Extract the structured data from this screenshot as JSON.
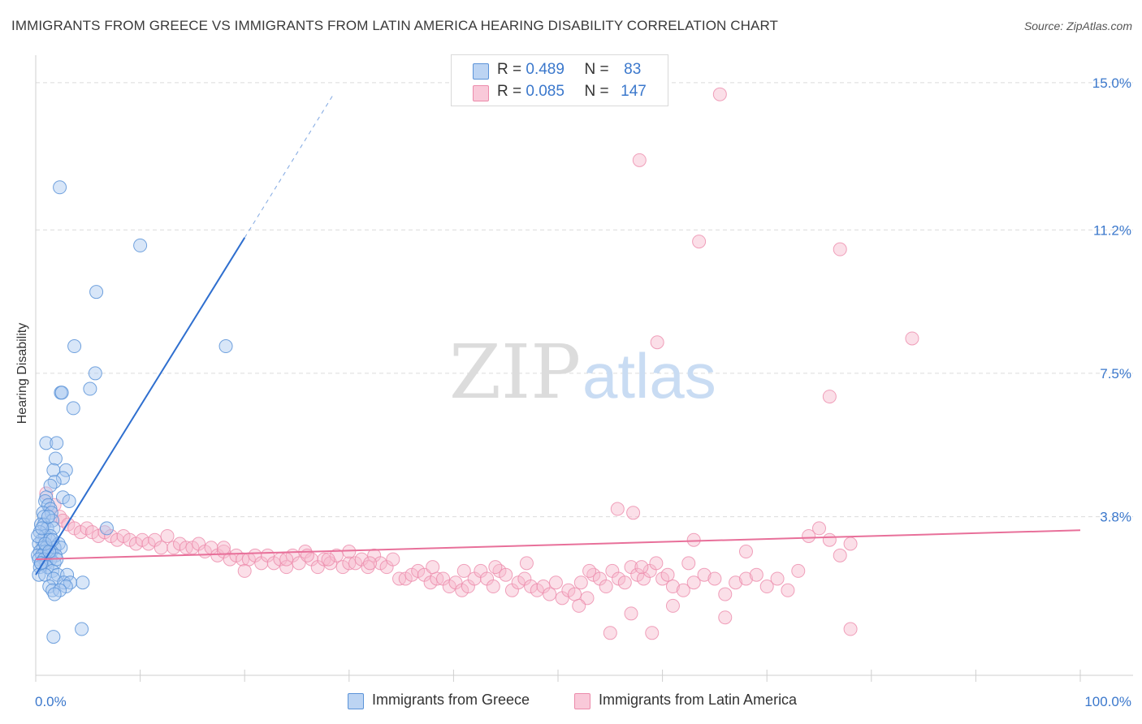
{
  "title": "IMMIGRANTS FROM GREECE VS IMMIGRANTS FROM LATIN AMERICA HEARING DISABILITY CORRELATION CHART",
  "source": "Source: ZipAtlas.com",
  "watermark": {
    "zip": "ZIP",
    "atlas": "atlas"
  },
  "legend": {
    "r_label": "R =",
    "n_label": "N =",
    "series": [
      {
        "name": "Immigrants from Greece",
        "r": "0.489",
        "n": "83"
      },
      {
        "name": "Immigrants from Latin America",
        "r": "0.085",
        "n": "147"
      }
    ]
  },
  "colors": {
    "blue_fill": "#a9c8f0",
    "blue_stroke": "#5b93d8",
    "blue_line": "#2f6fcf",
    "pink_fill": "#f6b8cc",
    "pink_stroke": "#ec8bab",
    "pink_line": "#e8709a",
    "grid": "#dcdcdc",
    "tick_text": "#3b78cc"
  },
  "chart_data": {
    "type": "scatter",
    "title": "IMMIGRANTS FROM GREECE VS IMMIGRANTS FROM LATIN AMERICA HEARING DISABILITY CORRELATION CHART",
    "xlabel": "",
    "ylabel": "Hearing Disability",
    "xlim": [
      0,
      100
    ],
    "ylim": [
      0,
      15.5
    ],
    "x_tick_labels": [
      "0.0%",
      "100.0%"
    ],
    "y_ticks": [
      3.8,
      7.5,
      11.2,
      15.0
    ],
    "y_tick_labels": [
      "3.8%",
      "7.5%",
      "11.2%",
      "15.0%"
    ],
    "series": [
      {
        "name": "Immigrants from Greece",
        "trend": {
          "x0": 0.0,
          "y0": 2.3,
          "x1": 20.0,
          "y1": 11.0,
          "dashed_to_x": 28.5
        },
        "points": [
          [
            2.3,
            12.3
          ],
          [
            10.0,
            10.8
          ],
          [
            5.8,
            9.6
          ],
          [
            3.7,
            8.2
          ],
          [
            18.2,
            8.2
          ],
          [
            5.7,
            7.5
          ],
          [
            5.2,
            7.1
          ],
          [
            2.4,
            7.0
          ],
          [
            2.5,
            7.0
          ],
          [
            3.6,
            6.6
          ],
          [
            1.0,
            5.7
          ],
          [
            2.0,
            5.7
          ],
          [
            1.9,
            5.3
          ],
          [
            1.7,
            5.0
          ],
          [
            2.9,
            5.0
          ],
          [
            2.6,
            4.8
          ],
          [
            1.8,
            4.7
          ],
          [
            1.4,
            4.6
          ],
          [
            1.0,
            4.3
          ],
          [
            2.6,
            4.3
          ],
          [
            3.2,
            4.2
          ],
          [
            0.9,
            4.2
          ],
          [
            1.2,
            4.1
          ],
          [
            1.4,
            4.0
          ],
          [
            0.7,
            3.9
          ],
          [
            1.5,
            3.9
          ],
          [
            0.8,
            3.8
          ],
          [
            1.6,
            3.7
          ],
          [
            6.8,
            3.5
          ],
          [
            0.5,
            3.6
          ],
          [
            0.8,
            3.6
          ],
          [
            1.1,
            3.5
          ],
          [
            1.7,
            3.5
          ],
          [
            0.4,
            3.4
          ],
          [
            0.9,
            3.3
          ],
          [
            1.4,
            3.3
          ],
          [
            0.6,
            3.2
          ],
          [
            1.3,
            3.2
          ],
          [
            2.2,
            3.1
          ],
          [
            0.3,
            3.1
          ],
          [
            0.7,
            3.0
          ],
          [
            1.0,
            3.0
          ],
          [
            1.8,
            3.0
          ],
          [
            2.4,
            3.0
          ],
          [
            0.4,
            2.9
          ],
          [
            0.9,
            2.9
          ],
          [
            1.5,
            2.9
          ],
          [
            0.2,
            2.8
          ],
          [
            0.6,
            2.8
          ],
          [
            1.2,
            2.8
          ],
          [
            1.9,
            2.8
          ],
          [
            0.3,
            2.7
          ],
          [
            0.8,
            2.7
          ],
          [
            1.4,
            2.7
          ],
          [
            0.5,
            2.6
          ],
          [
            1.0,
            2.6
          ],
          [
            1.8,
            2.6
          ],
          [
            0.4,
            2.5
          ],
          [
            1.1,
            2.5
          ],
          [
            1.6,
            2.4
          ],
          [
            0.3,
            2.3
          ],
          [
            0.9,
            2.3
          ],
          [
            2.1,
            2.3
          ],
          [
            3.0,
            2.3
          ],
          [
            1.7,
            2.2
          ],
          [
            2.7,
            2.1
          ],
          [
            4.5,
            2.1
          ],
          [
            3.3,
            2.1
          ],
          [
            2.9,
            2.0
          ],
          [
            1.3,
            2.0
          ],
          [
            1.6,
            1.9
          ],
          [
            2.3,
            1.9
          ],
          [
            1.8,
            1.8
          ],
          [
            4.4,
            0.9
          ],
          [
            1.7,
            0.7
          ],
          [
            0.5,
            2.6
          ],
          [
            0.2,
            3.3
          ],
          [
            0.6,
            3.5
          ],
          [
            1.2,
            3.8
          ],
          [
            2.0,
            2.7
          ],
          [
            0.9,
            3.1
          ],
          [
            1.3,
            2.9
          ],
          [
            1.6,
            3.2
          ]
        ]
      },
      {
        "name": "Immigrants from Latin America",
        "trend": {
          "x0": 0.0,
          "y0": 2.7,
          "x1": 100.0,
          "y1": 3.45
        },
        "points": [
          [
            65.5,
            14.7
          ],
          [
            57.8,
            13.0
          ],
          [
            63.5,
            10.9
          ],
          [
            77.0,
            10.7
          ],
          [
            59.5,
            8.3
          ],
          [
            83.9,
            8.4
          ],
          [
            76.0,
            6.9
          ],
          [
            55.7,
            4.0
          ],
          [
            57.2,
            3.9
          ],
          [
            1.0,
            4.4
          ],
          [
            1.8,
            4.1
          ],
          [
            2.3,
            3.8
          ],
          [
            2.6,
            3.7
          ],
          [
            3.1,
            3.6
          ],
          [
            3.7,
            3.5
          ],
          [
            4.3,
            3.4
          ],
          [
            4.9,
            3.5
          ],
          [
            5.4,
            3.4
          ],
          [
            6.0,
            3.3
          ],
          [
            6.6,
            3.4
          ],
          [
            7.2,
            3.3
          ],
          [
            7.8,
            3.2
          ],
          [
            8.4,
            3.3
          ],
          [
            9.0,
            3.2
          ],
          [
            9.6,
            3.1
          ],
          [
            10.2,
            3.2
          ],
          [
            10.8,
            3.1
          ],
          [
            11.4,
            3.2
          ],
          [
            12.0,
            3.0
          ],
          [
            12.6,
            3.3
          ],
          [
            13.2,
            3.0
          ],
          [
            13.8,
            3.1
          ],
          [
            14.4,
            3.0
          ],
          [
            15.0,
            3.0
          ],
          [
            15.6,
            3.1
          ],
          [
            16.2,
            2.9
          ],
          [
            16.8,
            3.0
          ],
          [
            17.4,
            2.8
          ],
          [
            18.0,
            2.9
          ],
          [
            18.6,
            2.7
          ],
          [
            19.2,
            2.8
          ],
          [
            19.8,
            2.7
          ],
          [
            20.4,
            2.7
          ],
          [
            21.0,
            2.8
          ],
          [
            21.6,
            2.6
          ],
          [
            22.2,
            2.8
          ],
          [
            22.8,
            2.6
          ],
          [
            23.4,
            2.7
          ],
          [
            24.0,
            2.5
          ],
          [
            24.6,
            2.8
          ],
          [
            25.2,
            2.6
          ],
          [
            25.8,
            2.9
          ],
          [
            26.4,
            2.7
          ],
          [
            27.0,
            2.5
          ],
          [
            27.6,
            2.7
          ],
          [
            28.2,
            2.6
          ],
          [
            28.8,
            2.8
          ],
          [
            29.4,
            2.5
          ],
          [
            30.0,
            2.6
          ],
          [
            30.6,
            2.6
          ],
          [
            31.2,
            2.7
          ],
          [
            31.8,
            2.5
          ],
          [
            32.4,
            2.8
          ],
          [
            33.0,
            2.6
          ],
          [
            33.6,
            2.5
          ],
          [
            34.2,
            2.7
          ],
          [
            34.8,
            2.2
          ],
          [
            35.4,
            2.2
          ],
          [
            36.0,
            2.3
          ],
          [
            36.6,
            2.4
          ],
          [
            37.2,
            2.3
          ],
          [
            37.8,
            2.1
          ],
          [
            38.4,
            2.2
          ],
          [
            39.0,
            2.2
          ],
          [
            39.6,
            2.0
          ],
          [
            40.2,
            2.1
          ],
          [
            40.8,
            1.9
          ],
          [
            41.4,
            2.0
          ],
          [
            42.0,
            2.2
          ],
          [
            42.6,
            2.4
          ],
          [
            43.2,
            2.2
          ],
          [
            43.8,
            2.0
          ],
          [
            44.4,
            2.4
          ],
          [
            45.0,
            2.3
          ],
          [
            45.6,
            1.9
          ],
          [
            46.2,
            2.1
          ],
          [
            46.8,
            2.2
          ],
          [
            47.4,
            2.0
          ],
          [
            48.0,
            1.9
          ],
          [
            48.6,
            2.0
          ],
          [
            49.2,
            1.8
          ],
          [
            49.8,
            2.1
          ],
          [
            50.4,
            1.7
          ],
          [
            51.0,
            1.9
          ],
          [
            51.6,
            1.8
          ],
          [
            52.2,
            2.1
          ],
          [
            52.8,
            1.7
          ],
          [
            53.4,
            2.3
          ],
          [
            54.0,
            2.2
          ],
          [
            54.6,
            2.0
          ],
          [
            55.2,
            2.4
          ],
          [
            55.8,
            2.2
          ],
          [
            56.4,
            2.1
          ],
          [
            57.0,
            2.5
          ],
          [
            57.6,
            2.3
          ],
          [
            58.2,
            2.2
          ],
          [
            58.8,
            2.4
          ],
          [
            59.4,
            2.6
          ],
          [
            60.0,
            2.2
          ],
          [
            61.0,
            2.0
          ],
          [
            62.0,
            1.9
          ],
          [
            63.0,
            2.1
          ],
          [
            64.0,
            2.3
          ],
          [
            65.0,
            2.2
          ],
          [
            66.0,
            1.8
          ],
          [
            67.0,
            2.1
          ],
          [
            68.0,
            2.2
          ],
          [
            69.0,
            2.3
          ],
          [
            70.0,
            2.0
          ],
          [
            71.0,
            2.2
          ],
          [
            72.0,
            1.9
          ],
          [
            73.0,
            2.4
          ],
          [
            74.0,
            3.3
          ],
          [
            75.0,
            3.5
          ],
          [
            76.0,
            3.2
          ],
          [
            77.0,
            2.8
          ],
          [
            78.0,
            3.1
          ],
          [
            63.0,
            3.2
          ],
          [
            68.0,
            2.9
          ],
          [
            57.0,
            1.3
          ],
          [
            59.0,
            0.8
          ],
          [
            61.0,
            1.5
          ],
          [
            66.0,
            1.2
          ],
          [
            78.0,
            0.9
          ],
          [
            52.0,
            1.5
          ],
          [
            55.0,
            0.8
          ],
          [
            47.0,
            2.6
          ],
          [
            44.0,
            2.5
          ],
          [
            41.0,
            2.4
          ],
          [
            38.0,
            2.5
          ],
          [
            30.0,
            2.9
          ],
          [
            20.0,
            2.4
          ],
          [
            18.0,
            3.0
          ],
          [
            24.0,
            2.7
          ],
          [
            26.0,
            2.8
          ],
          [
            28.0,
            2.7
          ],
          [
            32.0,
            2.6
          ],
          [
            53.0,
            2.4
          ],
          [
            58.0,
            2.5
          ],
          [
            60.5,
            2.3
          ],
          [
            62.5,
            2.6
          ]
        ]
      }
    ]
  }
}
